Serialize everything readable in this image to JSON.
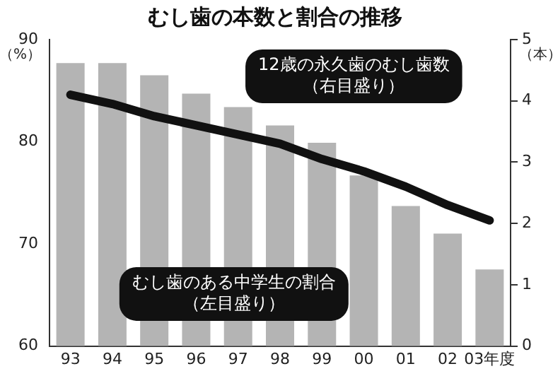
{
  "chart_data": {
    "type": "bar",
    "title": "むし歯の本数と割合の推移",
    "categories": [
      "93",
      "94",
      "95",
      "96",
      "97",
      "98",
      "99",
      "00",
      "01",
      "02",
      "03年度"
    ],
    "series": [
      {
        "color": "#b4b4b4",
        "values": [
          87.7,
          87.7,
          86.5,
          84.7,
          83.4,
          81.6,
          79.9,
          76.7,
          73.7,
          71.0,
          67.5
        ]
      },
      {
        "type": "line",
        "axis": "y2",
        "color": "#111111",
        "values": [
          4.1,
          3.95,
          3.75,
          3.6,
          3.45,
          3.3,
          3.05,
          2.85,
          2.6,
          2.3,
          2.05
        ]
      }
    ],
    "ylabel": "（%）",
    "y2label": "（本）",
    "ylim": [
      60,
      90
    ],
    "yticks": [
      60,
      70,
      80,
      90
    ],
    "y2lim": [
      0,
      5
    ],
    "y2ticks": [
      0,
      1,
      2,
      3,
      4,
      5
    ],
    "grid": false,
    "legend": false,
    "marker": "none",
    "annotations": [
      "12歳の永久歯のむし歯数",
      "（右目盛り）",
      "むし歯のある中学生の割合",
      "（左目盛り）"
    ]
  }
}
